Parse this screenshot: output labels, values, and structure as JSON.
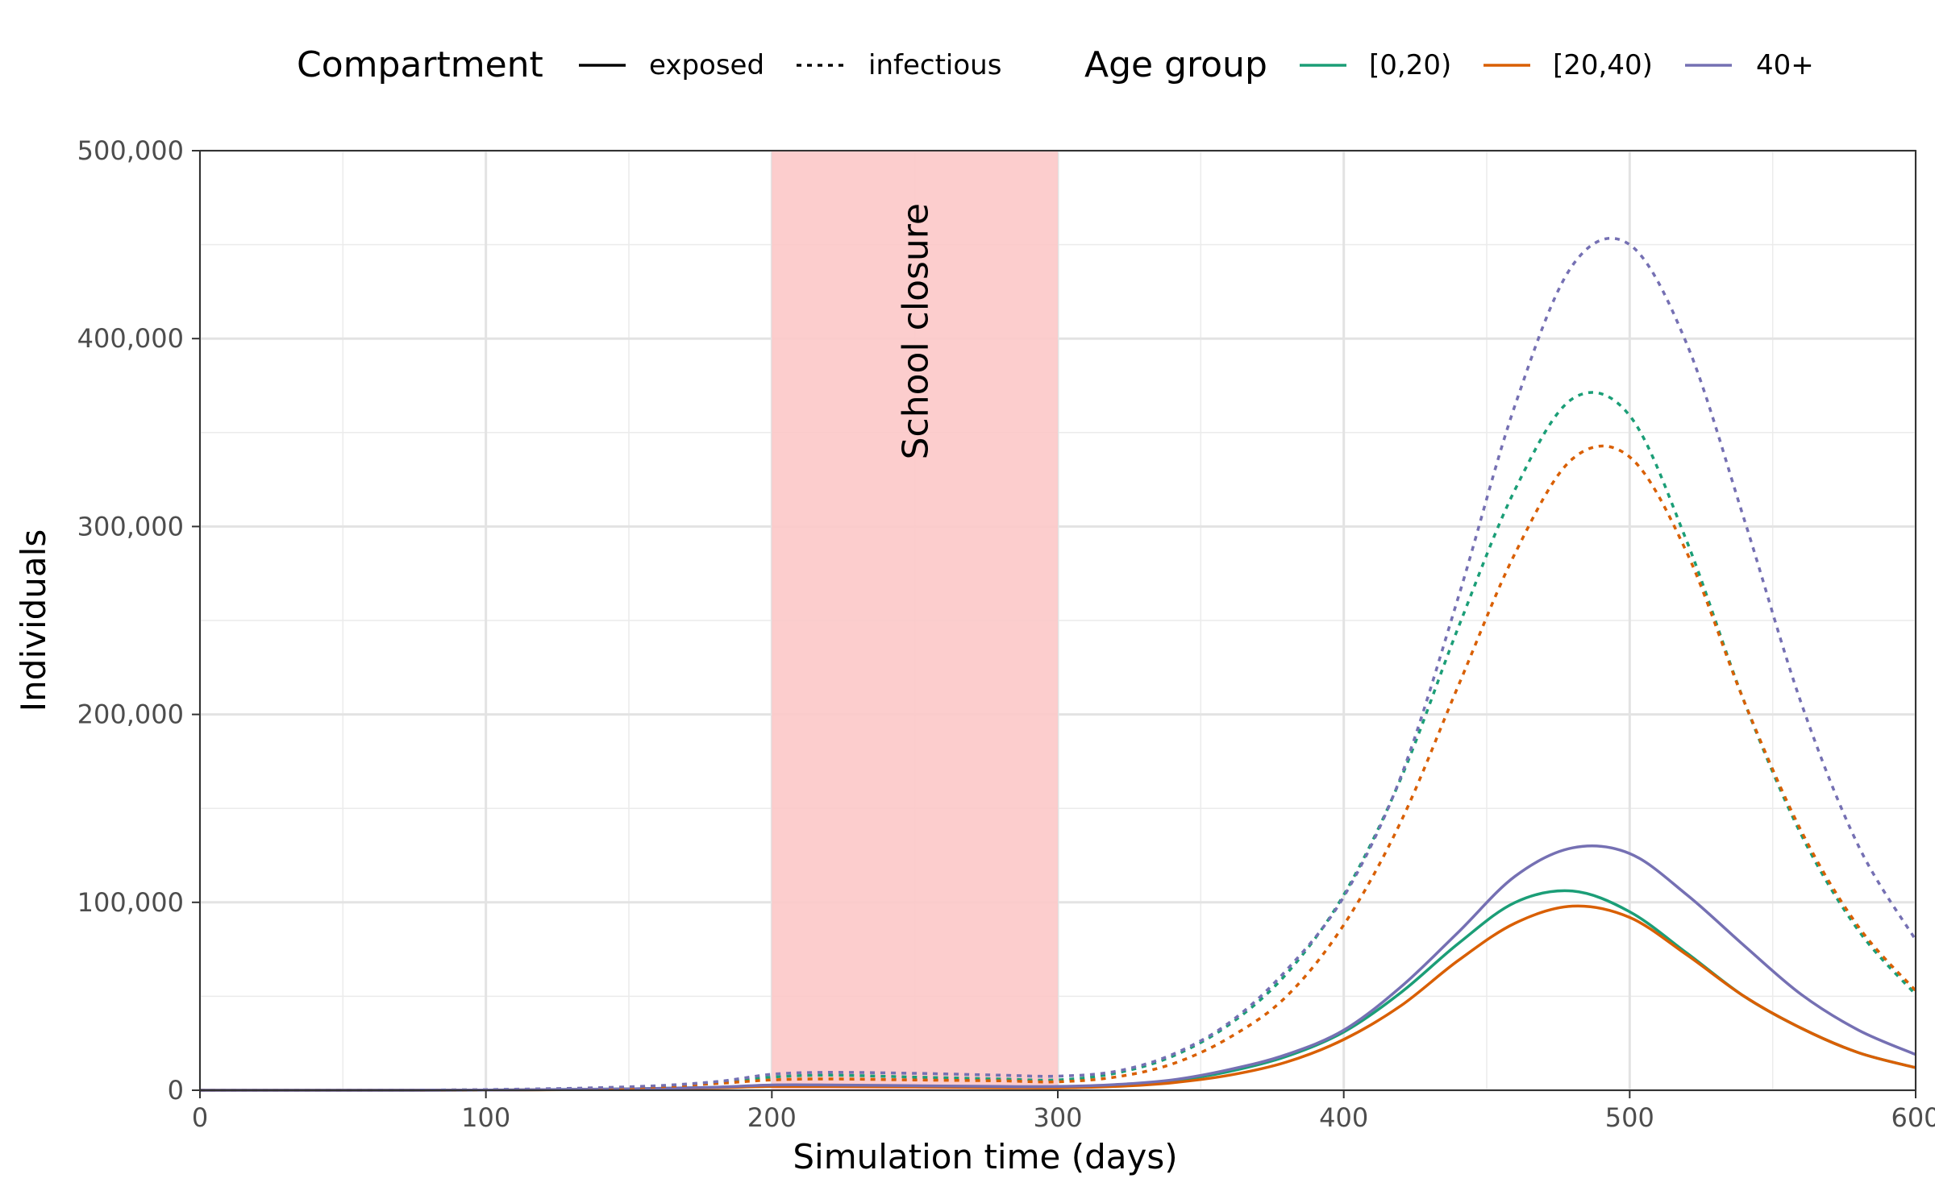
{
  "chart_data": {
    "type": "line",
    "xlabel": "Simulation time (days)",
    "ylabel": "Individuals",
    "xlim": [
      0,
      600
    ],
    "ylim": [
      0,
      500000
    ],
    "x_ticks": [
      0,
      100,
      200,
      300,
      400,
      500,
      600
    ],
    "x_tick_labels": [
      "0",
      "100",
      "200",
      "300",
      "400",
      "500",
      "600"
    ],
    "y_ticks": [
      0,
      100000,
      200000,
      300000,
      400000,
      500000
    ],
    "y_tick_labels": [
      "0",
      "100,000",
      "200,000",
      "300,000",
      "400,000",
      "500,000"
    ],
    "grid": true,
    "legend_position": "top",
    "legend": {
      "compartment_title": "Compartment",
      "compartments": [
        {
          "label": "exposed",
          "dash": "solid"
        },
        {
          "label": "infectious",
          "dash": "dotted"
        }
      ],
      "age_title": "Age group",
      "age_groups": [
        {
          "label": "[0,20)",
          "color": "#1b9e77"
        },
        {
          "label": "[20,40)",
          "color": "#d95f02"
        },
        {
          "label": "40+",
          "color": "#7570b3"
        }
      ]
    },
    "annotation": {
      "label": "School closure",
      "x_start": 200,
      "x_end": 300,
      "color": "#fcc8c8"
    },
    "x": [
      0,
      50,
      100,
      150,
      180,
      200,
      220,
      250,
      280,
      300,
      320,
      340,
      360,
      380,
      400,
      420,
      440,
      460,
      480,
      500,
      520,
      540,
      560,
      580,
      600
    ],
    "series": [
      {
        "group": "[0,20)",
        "compartment": "exposed",
        "color": "#1b9e77",
        "dash": "solid",
        "values": [
          0,
          0,
          100,
          700,
          1500,
          2500,
          2500,
          2000,
          1500,
          1500,
          2500,
          5000,
          10000,
          18000,
          31000,
          52000,
          78000,
          100000,
          106000,
          95000,
          73000,
          50000,
          33000,
          20000,
          12000
        ]
      },
      {
        "group": "[20,40)",
        "compartment": "exposed",
        "color": "#d95f02",
        "dash": "solid",
        "values": [
          0,
          0,
          100,
          600,
          1300,
          2000,
          2000,
          1800,
          1400,
          1300,
          2000,
          4000,
          8000,
          15000,
          27000,
          45000,
          69000,
          89000,
          98000,
          92000,
          72000,
          50000,
          33000,
          20000,
          12000
        ]
      },
      {
        "group": "40+",
        "compartment": "exposed",
        "color": "#7570b3",
        "dash": "solid",
        "values": [
          0,
          0,
          100,
          700,
          1600,
          2800,
          2800,
          2400,
          2000,
          2000,
          3000,
          5500,
          11000,
          19000,
          32000,
          55000,
          84000,
          114000,
          129000,
          126000,
          104000,
          77000,
          51000,
          32000,
          19000
        ]
      },
      {
        "group": "[0,20)",
        "compartment": "infectious",
        "color": "#1b9e77",
        "dash": "dotted",
        "values": [
          0,
          0,
          300,
          1500,
          4000,
          7000,
          8000,
          7000,
          6000,
          5500,
          9000,
          18000,
          35000,
          62000,
          104000,
          166000,
          246000,
          320000,
          368000,
          359000,
          292000,
          207000,
          136000,
          85000,
          51000
        ]
      },
      {
        "group": "[20,40)",
        "compartment": "infectious",
        "color": "#d95f02",
        "dash": "dotted",
        "values": [
          0,
          0,
          250,
          1200,
          3500,
          5500,
          6000,
          5500,
          5000,
          4500,
          7000,
          14000,
          28000,
          50000,
          88000,
          143000,
          215000,
          286000,
          336000,
          337000,
          286000,
          207000,
          138000,
          87000,
          53000
        ]
      },
      {
        "group": "40+",
        "compartment": "infectious",
        "color": "#7570b3",
        "dash": "dotted",
        "values": [
          0,
          0,
          350,
          1800,
          4500,
          8500,
          9500,
          9000,
          8000,
          7500,
          10000,
          19000,
          36000,
          64000,
          103000,
          167000,
          262000,
          365000,
          439000,
          450000,
          397000,
          304000,
          206000,
          130000,
          80000
        ]
      }
    ]
  }
}
